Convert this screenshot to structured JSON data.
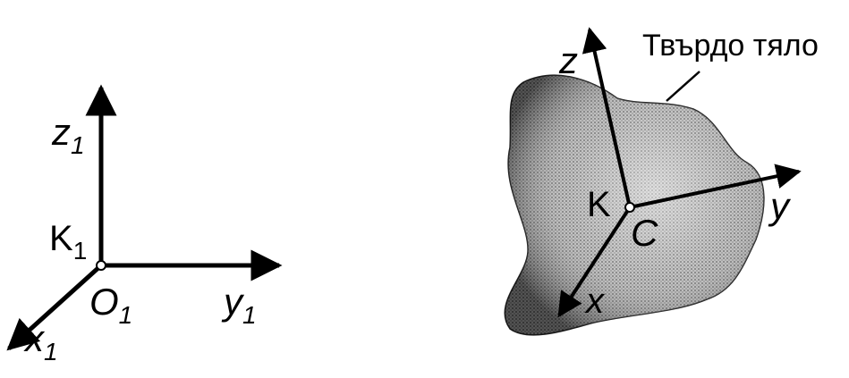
{
  "left_frame": {
    "frame_label": "K",
    "frame_sub": "1",
    "origin_label": "O",
    "origin_sub": "1",
    "axis_x": "x",
    "axis_x_sub": "1",
    "axis_y": "y",
    "axis_y_sub": "1",
    "axis_z": "z",
    "axis_z_sub": "1"
  },
  "right_frame": {
    "frame_label": "K",
    "origin_label": "C",
    "axis_x": "x",
    "axis_y": "y",
    "axis_z": "z",
    "body_label": "Твърдо тяло"
  }
}
